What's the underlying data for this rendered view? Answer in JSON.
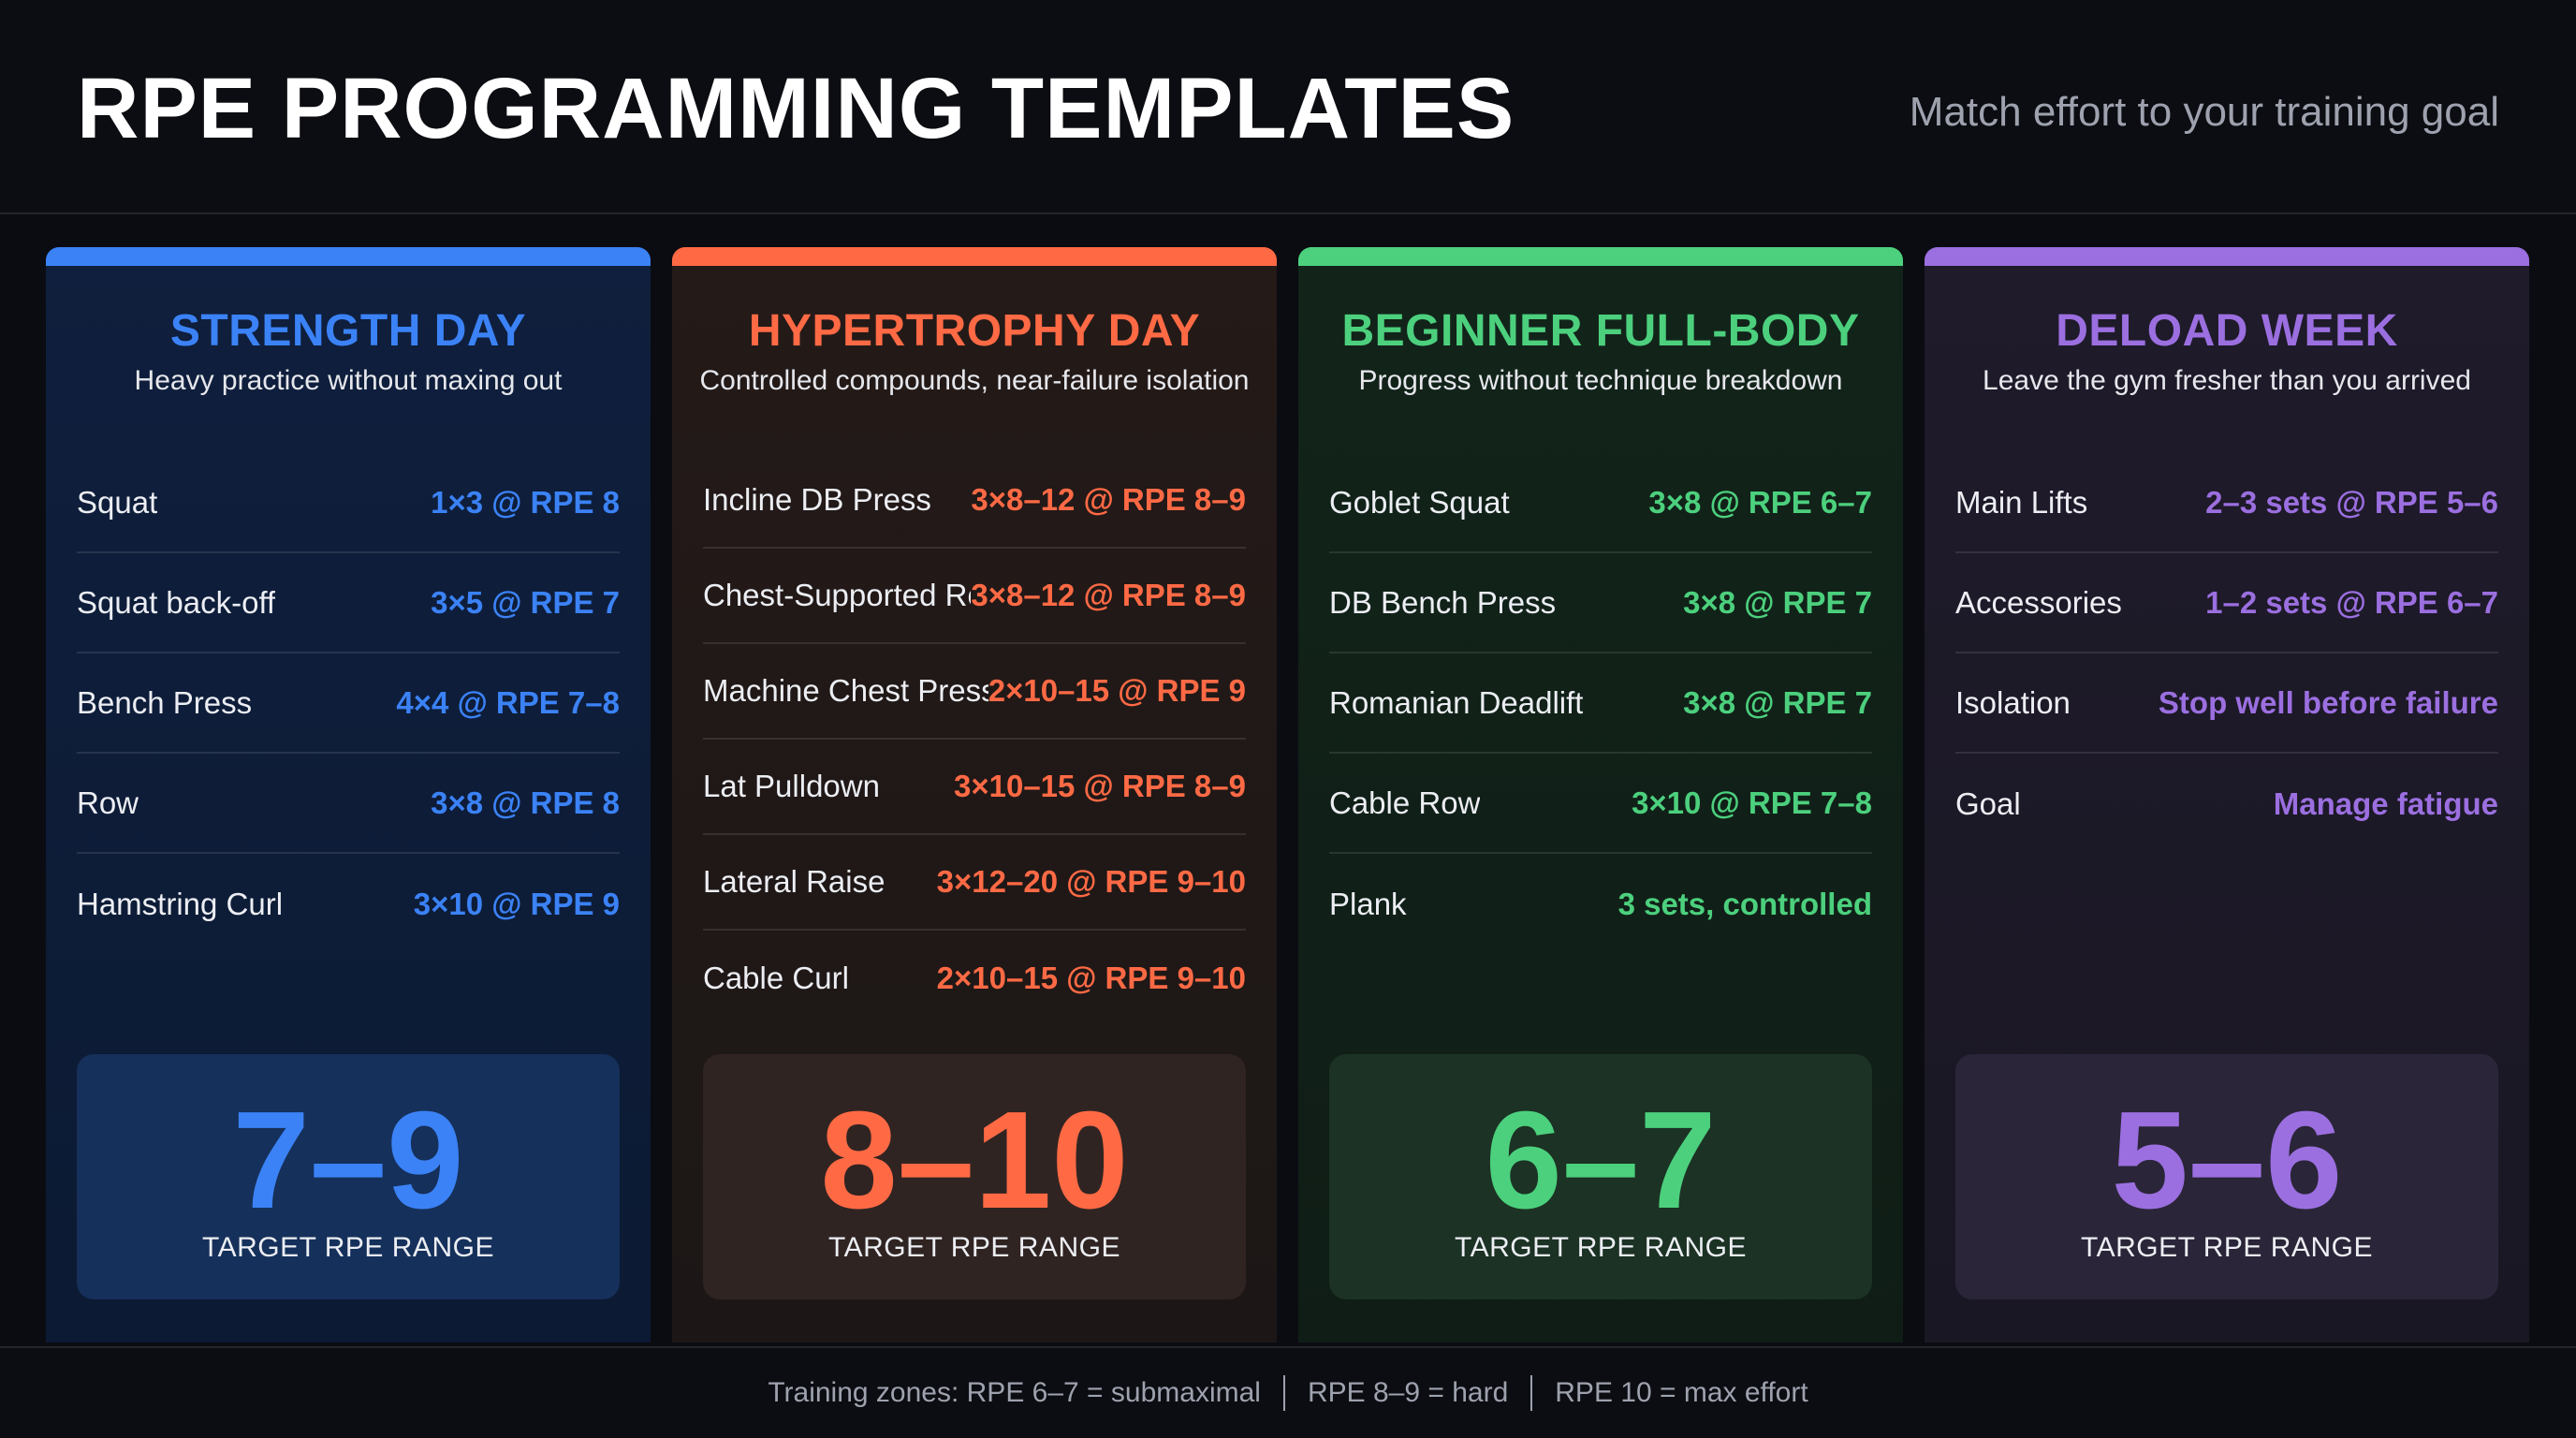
{
  "header": {
    "title": "RPE PROGRAMMING TEMPLATES",
    "subtitle": "Match effort to your training goal"
  },
  "cards": [
    {
      "title": "STRENGTH DAY",
      "subtitle": "Heavy practice without maxing out",
      "accent": "#3b82f6",
      "rows": [
        {
          "exercise": "Squat",
          "prescription": "1×3 @ RPE 8"
        },
        {
          "exercise": "Squat back-off",
          "prescription": "3×5 @ RPE 7"
        },
        {
          "exercise": "Bench Press",
          "prescription": "4×4 @ RPE 7–8"
        },
        {
          "exercise": "Row",
          "prescription": "3×8 @ RPE 8"
        },
        {
          "exercise": "Hamstring Curl",
          "prescription": "3×10 @ RPE 9"
        }
      ],
      "rpe_range": "7–9",
      "rpe_label": "TARGET RPE RANGE"
    },
    {
      "title": "HYPERTROPHY DAY",
      "subtitle": "Controlled compounds, near-failure isolation",
      "accent": "#ff6a45",
      "rows": [
        {
          "exercise": "Incline DB Press",
          "prescription": "3×8–12 @ RPE 8–9"
        },
        {
          "exercise": "Chest-Supported Row",
          "prescription": "3×8–12 @ RPE 8–9"
        },
        {
          "exercise": "Machine Chest Press",
          "prescription": "2×10–15 @ RPE 9"
        },
        {
          "exercise": "Lat Pulldown",
          "prescription": "3×10–15 @ RPE 8–9"
        },
        {
          "exercise": "Lateral Raise",
          "prescription": "3×12–20 @ RPE 9–10"
        },
        {
          "exercise": "Cable Curl",
          "prescription": "2×10–15 @ RPE 9–10"
        }
      ],
      "rpe_range": "8–10",
      "rpe_label": "TARGET RPE RANGE"
    },
    {
      "title": "BEGINNER FULL-BODY",
      "subtitle": "Progress without technique breakdown",
      "accent": "#4cd07d",
      "rows": [
        {
          "exercise": "Goblet Squat",
          "prescription": "3×8 @ RPE 6–7"
        },
        {
          "exercise": "DB Bench Press",
          "prescription": "3×8 @ RPE 7"
        },
        {
          "exercise": "Romanian Deadlift",
          "prescription": "3×8 @ RPE 7"
        },
        {
          "exercise": "Cable Row",
          "prescription": "3×10 @ RPE 7–8"
        },
        {
          "exercise": "Plank",
          "prescription": "3 sets, controlled"
        }
      ],
      "rpe_range": "6–7",
      "rpe_label": "TARGET RPE RANGE"
    },
    {
      "title": "DELOAD WEEK",
      "subtitle": "Leave the gym fresher than you arrived",
      "accent": "#9b6fe0",
      "rows": [
        {
          "exercise": "Main Lifts",
          "prescription": "2–3 sets @ RPE 5–6"
        },
        {
          "exercise": "Accessories",
          "prescription": "1–2 sets @ RPE 6–7"
        },
        {
          "exercise": "Isolation",
          "prescription": "Stop well before failure"
        },
        {
          "exercise": "Goal",
          "prescription": "Manage fatigue"
        }
      ],
      "rpe_range": "5–6",
      "rpe_label": "TARGET RPE RANGE"
    }
  ],
  "footer": {
    "zone_1": "Training zones: RPE 6–7 = submaximal",
    "zone_2": "RPE 8–9 = hard",
    "zone_3": "RPE 10 = max effort"
  }
}
